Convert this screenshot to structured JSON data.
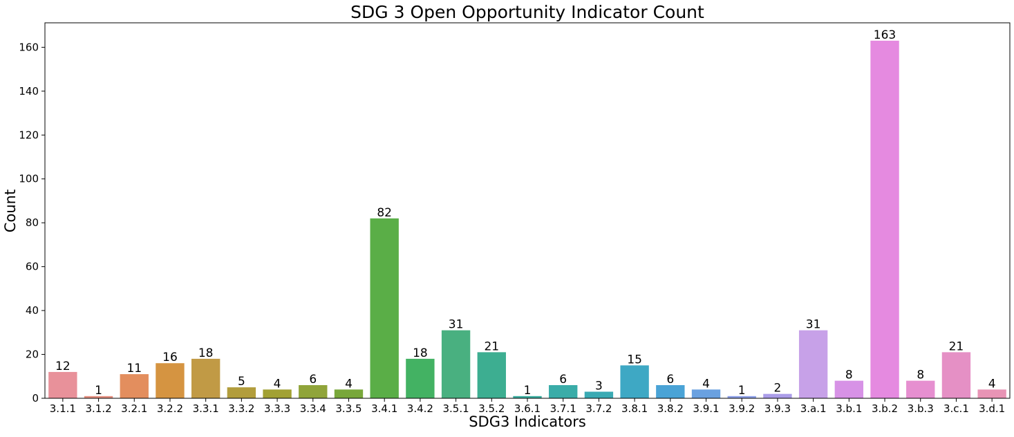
{
  "chart_data": {
    "type": "bar",
    "title": "SDG 3 Open Opportunity Indicator Count",
    "xlabel": "SDG3 Indicators",
    "ylabel": "Count",
    "ylim": [
      0,
      171.15
    ],
    "yticks": [
      0,
      20,
      40,
      60,
      80,
      100,
      120,
      140,
      160
    ],
    "grid": false,
    "legend": "none",
    "categories": [
      "3.1.1",
      "3.1.2",
      "3.2.1",
      "3.2.2",
      "3.3.1",
      "3.3.2",
      "3.3.3",
      "3.3.4",
      "3.3.5",
      "3.4.1",
      "3.4.2",
      "3.5.1",
      "3.5.2",
      "3.6.1",
      "3.7.1",
      "3.7.2",
      "3.8.1",
      "3.8.2",
      "3.9.1",
      "3.9.2",
      "3.9.3",
      "3.a.1",
      "3.b.1",
      "3.b.2",
      "3.b.3",
      "3.c.1",
      "3.d.1"
    ],
    "values": [
      12,
      1,
      11,
      16,
      18,
      5,
      4,
      6,
      4,
      82,
      18,
      31,
      21,
      1,
      6,
      3,
      15,
      6,
      4,
      1,
      2,
      31,
      8,
      163,
      8,
      21,
      4
    ],
    "data_labels": [
      "12",
      "1",
      "11",
      "16",
      "18",
      "5",
      "4",
      "6",
      "4",
      "82",
      "18",
      "31",
      "21",
      "1",
      "6",
      "3",
      "15",
      "6",
      "4",
      "1",
      "2",
      "31",
      "8",
      "163",
      "8",
      "21",
      "4"
    ],
    "colors": [
      "#e8919a",
      "#e68f80",
      "#e38e5e",
      "#d59441",
      "#c19a45",
      "#b29d3c",
      "#a2a134",
      "#90a43a",
      "#78a73a",
      "#5aae47",
      "#43b263",
      "#49b080",
      "#3dae91",
      "#3bad9f",
      "#3aaca8",
      "#3aaab3",
      "#3ea8c4",
      "#4aa3d6",
      "#6aa1e0",
      "#8ea0e8",
      "#ab9de8",
      "#c7a1e8",
      "#d792e6",
      "#e58ae0",
      "#e68fd0",
      "#e590c5",
      "#e894b5"
    ]
  }
}
